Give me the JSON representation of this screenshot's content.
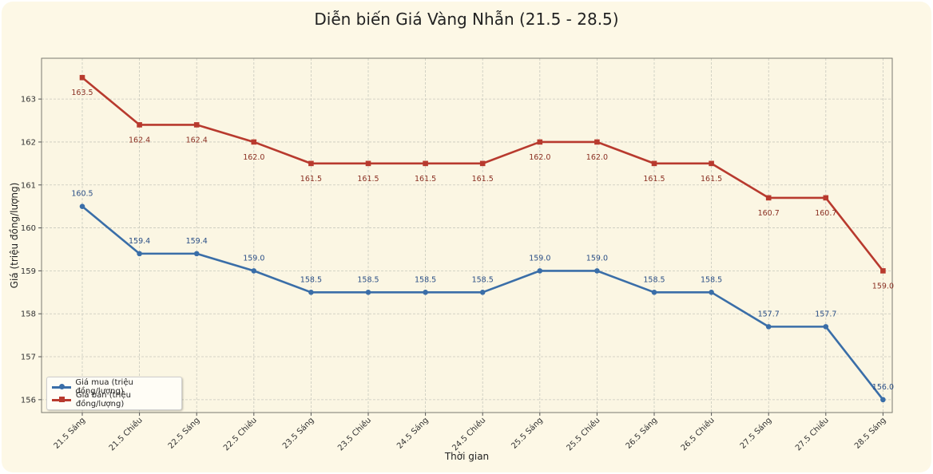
{
  "chart_data": {
    "type": "line",
    "title": "Diễn biến Giá Vàng Nhẫn (21.5 - 28.5)",
    "xlabel": "Thời gian",
    "ylabel": "Giá (triệu đồng/lượng)",
    "categories": [
      "21.5 Sáng",
      "21.5 Chiều",
      "22.5 Sáng",
      "22.5 Chiều",
      "23.5 Sáng",
      "23.5 Chiều",
      "24.5 Sáng",
      "24.5 Chiều",
      "25.5 Sáng",
      "25.5 Chiều",
      "26.5 Sáng",
      "26.5 Chiều",
      "27.5 Sáng",
      "27.5 Chiều",
      "28.5 Sáng"
    ],
    "series": [
      {
        "name": "Giá mua (triệu đồng/lượng)",
        "color": "#3a6ea8",
        "marker": "circle",
        "values": [
          160.5,
          159.4,
          159.4,
          159.0,
          158.5,
          158.5,
          158.5,
          158.5,
          159.0,
          159.0,
          158.5,
          158.5,
          157.7,
          157.7,
          156.0
        ],
        "labels": [
          "160.5",
          "159.4",
          "159.4",
          "159.0",
          "158.5",
          "158.5",
          "158.5",
          "158.5",
          "159.0",
          "159.0",
          "158.5",
          "158.5",
          "157.7",
          "157.7",
          "156.0"
        ]
      },
      {
        "name": "Giá bán (triệu đồng/lượng)",
        "color": "#b83a2e",
        "marker": "square",
        "values": [
          163.5,
          162.4,
          162.4,
          162.0,
          161.5,
          161.5,
          161.5,
          161.5,
          162.0,
          162.0,
          161.5,
          161.5,
          160.7,
          160.7,
          159.0
        ],
        "labels": [
          "163.5",
          "162.4",
          "162.4",
          "162.0",
          "161.5",
          "161.5",
          "161.5",
          "161.5",
          "162.0",
          "162.0",
          "161.5",
          "161.5",
          "160.7",
          "160.7",
          "159.0"
        ]
      }
    ],
    "ylim": [
      155.7,
      163.95
    ],
    "yticks": [
      "156",
      "157",
      "158",
      "159",
      "160",
      "161",
      "162",
      "163"
    ],
    "grid": true,
    "legend_position": "lower-left"
  }
}
